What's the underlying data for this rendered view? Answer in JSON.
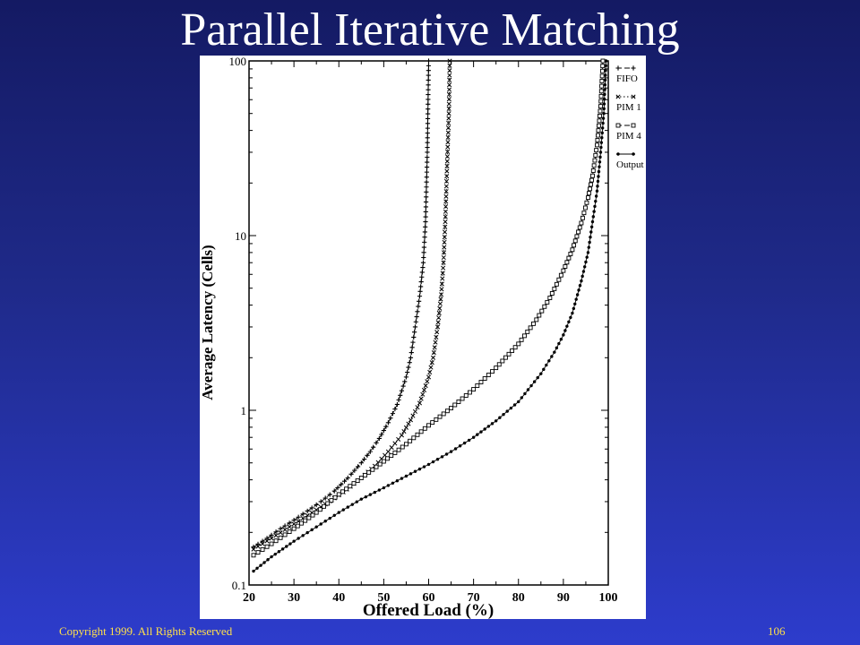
{
  "slide": {
    "title": "Parallel Iterative Matching",
    "copyright": "Copyright 1999. All Rights Reserved",
    "page_number": "106"
  },
  "colors": {
    "background_top": "#141a63",
    "background_bottom": "#2d3ccc",
    "title": "#ffffff",
    "footer": "#ffe04a",
    "plot_ink": "#000000"
  },
  "chart_data": {
    "type": "line",
    "title": "",
    "xlabel": "Offered Load (%)",
    "ylabel": "Average Latency (Cells)",
    "xlim": [
      20,
      100
    ],
    "ylim": [
      0.1,
      100
    ],
    "yscale": "log",
    "x_ticks": [
      20,
      30,
      40,
      50,
      60,
      70,
      80,
      90,
      100
    ],
    "y_ticks": [
      0.1,
      1,
      10,
      100
    ],
    "y_tick_labels": [
      "0.1",
      "1",
      "10",
      "100"
    ],
    "grid": false,
    "legend_position": "right",
    "series": [
      {
        "name": "FIFO",
        "marker": "plus",
        "line_style": "dashed",
        "points": [
          [
            21,
            0.165
          ],
          [
            24,
            0.185
          ],
          [
            27,
            0.21
          ],
          [
            30,
            0.235
          ],
          [
            33,
            0.265
          ],
          [
            36,
            0.3
          ],
          [
            39,
            0.345
          ],
          [
            42,
            0.41
          ],
          [
            45,
            0.5
          ],
          [
            47,
            0.58
          ],
          [
            49,
            0.69
          ],
          [
            51,
            0.85
          ],
          [
            53,
            1.08
          ],
          [
            55,
            1.55
          ],
          [
            56,
            2.0
          ],
          [
            57,
            3.0
          ],
          [
            58,
            4.5
          ],
          [
            58.8,
            7.0
          ],
          [
            59.3,
            12.0
          ],
          [
            59.7,
            30.0
          ],
          [
            60,
            100
          ]
        ]
      },
      {
        "name": "PIM 1",
        "marker": "x",
        "line_style": "dotted",
        "points": [
          [
            21,
            0.16
          ],
          [
            25,
            0.185
          ],
          [
            29,
            0.215
          ],
          [
            33,
            0.25
          ],
          [
            37,
            0.29
          ],
          [
            41,
            0.34
          ],
          [
            45,
            0.41
          ],
          [
            48,
            0.48
          ],
          [
            51,
            0.58
          ],
          [
            54,
            0.72
          ],
          [
            56,
            0.88
          ],
          [
            58,
            1.1
          ],
          [
            60,
            1.55
          ],
          [
            61,
            2.0
          ],
          [
            62,
            3.0
          ],
          [
            62.8,
            4.6
          ],
          [
            63.3,
            7.0
          ],
          [
            63.7,
            12.0
          ],
          [
            64.1,
            25.0
          ],
          [
            64.5,
            50.0
          ],
          [
            64.7,
            100
          ]
        ]
      },
      {
        "name": "PIM 4",
        "marker": "square",
        "line_style": "dashed",
        "points": [
          [
            21,
            0.148
          ],
          [
            25,
            0.172
          ],
          [
            30,
            0.21
          ],
          [
            35,
            0.26
          ],
          [
            40,
            0.33
          ],
          [
            45,
            0.41
          ],
          [
            50,
            0.51
          ],
          [
            55,
            0.64
          ],
          [
            60,
            0.82
          ],
          [
            65,
            1.03
          ],
          [
            70,
            1.32
          ],
          [
            75,
            1.75
          ],
          [
            80,
            2.4
          ],
          [
            84,
            3.3
          ],
          [
            87,
            4.4
          ],
          [
            90,
            6.3
          ],
          [
            92,
            8.3
          ],
          [
            94,
            11.8
          ],
          [
            95.5,
            16.5
          ],
          [
            96.5,
            22.0
          ],
          [
            97.5,
            33.0
          ],
          [
            98.3,
            55.0
          ],
          [
            98.8,
            100
          ]
        ]
      },
      {
        "name": "Output",
        "marker": "dot",
        "line_style": "solid",
        "points": [
          [
            21,
            0.12
          ],
          [
            25,
            0.145
          ],
          [
            30,
            0.178
          ],
          [
            35,
            0.215
          ],
          [
            40,
            0.26
          ],
          [
            45,
            0.31
          ],
          [
            50,
            0.36
          ],
          [
            55,
            0.42
          ],
          [
            60,
            0.49
          ],
          [
            65,
            0.58
          ],
          [
            70,
            0.7
          ],
          [
            75,
            0.87
          ],
          [
            80,
            1.12
          ],
          [
            85,
            1.62
          ],
          [
            88,
            2.15
          ],
          [
            90,
            2.7
          ],
          [
            92,
            3.6
          ],
          [
            94,
            5.5
          ],
          [
            95.5,
            8.0
          ],
          [
            96.5,
            12.0
          ],
          [
            97.5,
            18.0
          ],
          [
            98.3,
            30.0
          ],
          [
            99,
            50.0
          ],
          [
            99.5,
            100
          ]
        ]
      }
    ]
  }
}
